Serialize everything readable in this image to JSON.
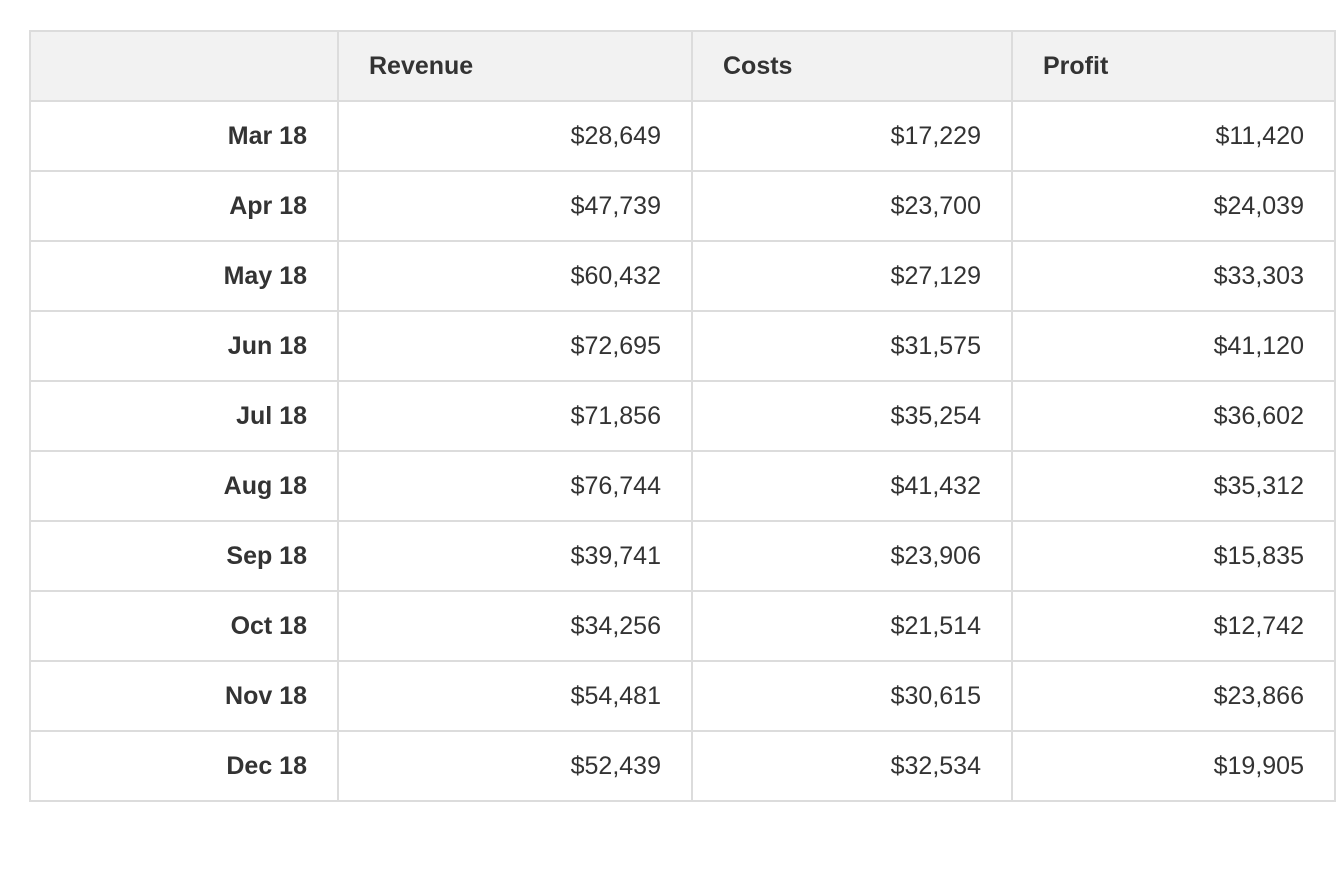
{
  "table": {
    "columns": [
      "",
      "Revenue",
      "Costs",
      "Profit"
    ],
    "rows": [
      {
        "label": "Mar 18",
        "revenue": "$28,649",
        "costs": "$17,229",
        "profit": "$11,420"
      },
      {
        "label": "Apr 18",
        "revenue": "$47,739",
        "costs": "$23,700",
        "profit": "$24,039"
      },
      {
        "label": "May 18",
        "revenue": "$60,432",
        "costs": "$27,129",
        "profit": "$33,303"
      },
      {
        "label": "Jun 18",
        "revenue": "$72,695",
        "costs": "$31,575",
        "profit": "$41,120"
      },
      {
        "label": "Jul 18",
        "revenue": "$71,856",
        "costs": "$35,254",
        "profit": "$36,602"
      },
      {
        "label": "Aug 18",
        "revenue": "$76,744",
        "costs": "$41,432",
        "profit": "$35,312"
      },
      {
        "label": "Sep 18",
        "revenue": "$39,741",
        "costs": "$23,906",
        "profit": "$15,835"
      },
      {
        "label": "Oct 18",
        "revenue": "$34,256",
        "costs": "$21,514",
        "profit": "$12,742"
      },
      {
        "label": "Nov 18",
        "revenue": "$54,481",
        "costs": "$30,615",
        "profit": "$23,866"
      },
      {
        "label": "Dec 18",
        "revenue": "$52,439",
        "costs": "$32,534",
        "profit": "$19,905"
      }
    ]
  },
  "colors": {
    "header_bg": "#f2f2f2",
    "border": "#dcdcdc",
    "text": "#333333"
  }
}
